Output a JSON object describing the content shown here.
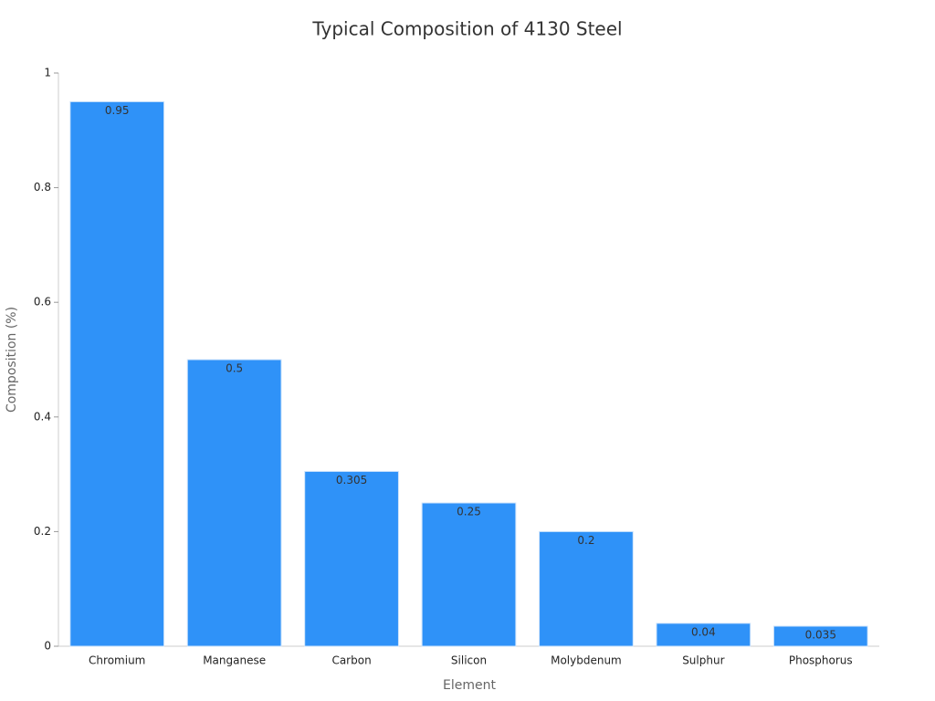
{
  "chart_data": {
    "type": "bar",
    "title": "Typical Composition of 4130 Steel",
    "x_label": "Element",
    "y_label": "Composition (%)",
    "categories": [
      "Chromium",
      "Manganese",
      "Carbon",
      "Silicon",
      "Molybdenum",
      "Sulphur",
      "Phosphorus"
    ],
    "values": [
      0.95,
      0.5,
      0.305,
      0.25,
      0.2,
      0.04,
      0.035
    ],
    "color": "#2f92f8",
    "ylim": [
      0,
      1
    ],
    "yticks": [
      0,
      0.2,
      0.4,
      0.6,
      0.8,
      1
    ],
    "grid": false
  }
}
